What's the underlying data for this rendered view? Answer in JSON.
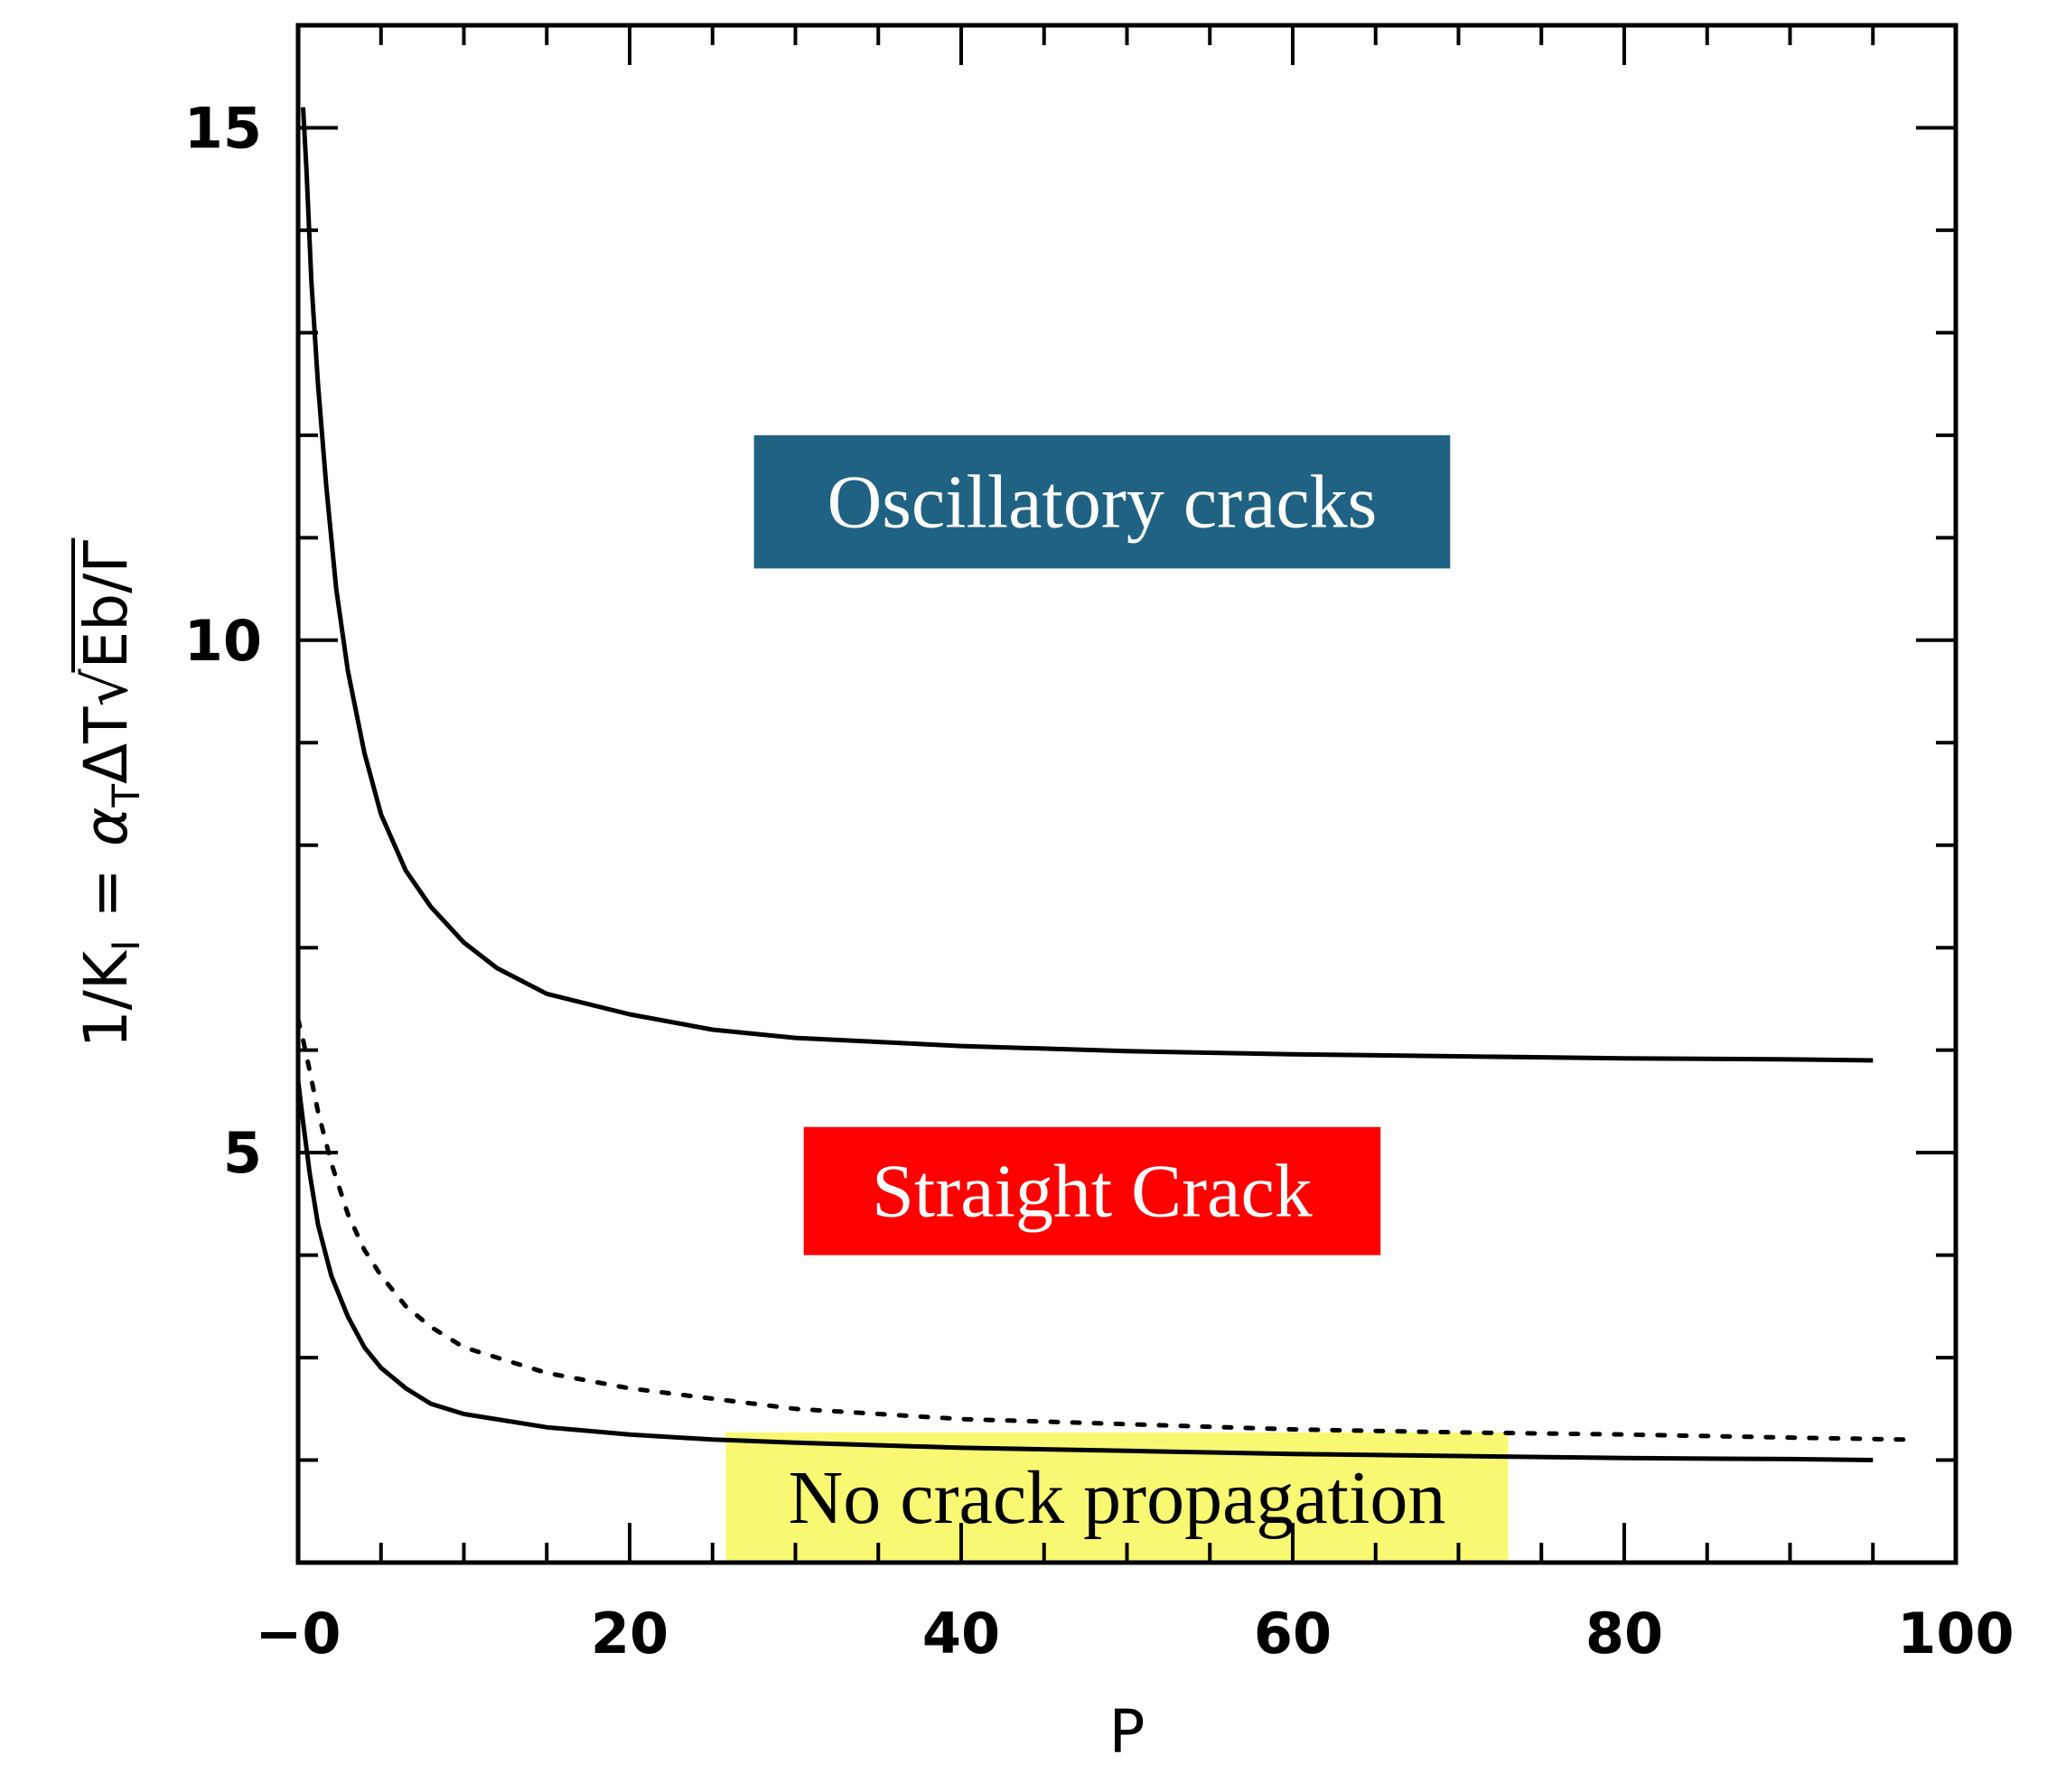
{
  "chart_data": {
    "type": "line",
    "title": "",
    "xlabel": "P",
    "ylabel": "1/K_I = α_T ΔT √(Eb/Γ)",
    "ylabel_parts": {
      "lhs_main": "1/K",
      "lhs_sub": "I",
      "equals": "=",
      "alpha": "α",
      "alpha_sub": "T",
      "delta_t": "ΔT",
      "radicand": "Eb/Γ"
    },
    "xlim": [
      0,
      100
    ],
    "ylim": [
      1,
      16
    ],
    "x_ticks": [
      {
        "value": 0,
        "label": "−0"
      },
      {
        "value": 20,
        "label": "20"
      },
      {
        "value": 40,
        "label": "40"
      },
      {
        "value": 60,
        "label": "60"
      },
      {
        "value": 80,
        "label": "80"
      },
      {
        "value": 100,
        "label": "100"
      }
    ],
    "y_ticks": [
      {
        "value": 5,
        "label": "5"
      },
      {
        "value": 10,
        "label": "10"
      },
      {
        "value": 15,
        "label": "15"
      }
    ],
    "x_minor_step": 5,
    "y_minor_step": 1,
    "grid": false,
    "series": [
      {
        "style": "solid",
        "color": "#000000",
        "points": [
          [
            0.3,
            15.2
          ],
          [
            0.5,
            14.6
          ],
          [
            0.8,
            13.5
          ],
          [
            1.2,
            12.5
          ],
          [
            1.7,
            11.5
          ],
          [
            2.3,
            10.5
          ],
          [
            3,
            9.7
          ],
          [
            4,
            8.9
          ],
          [
            5,
            8.3
          ],
          [
            6.5,
            7.75
          ],
          [
            8,
            7.4
          ],
          [
            10,
            7.05
          ],
          [
            12,
            6.8
          ],
          [
            15,
            6.55
          ],
          [
            20,
            6.35
          ],
          [
            25,
            6.2
          ],
          [
            30,
            6.12
          ],
          [
            40,
            6.04
          ],
          [
            50,
            5.99
          ],
          [
            60,
            5.96
          ],
          [
            70,
            5.94
          ],
          [
            80,
            5.92
          ],
          [
            90,
            5.91
          ],
          [
            95,
            5.9
          ]
        ]
      },
      {
        "style": "solid",
        "color": "#000000",
        "points": [
          [
            0,
            5.7
          ],
          [
            0.3,
            5.3
          ],
          [
            0.7,
            4.8
          ],
          [
            1.2,
            4.3
          ],
          [
            2,
            3.8
          ],
          [
            3,
            3.4
          ],
          [
            4,
            3.1
          ],
          [
            5,
            2.9
          ],
          [
            6.5,
            2.7
          ],
          [
            8,
            2.55
          ],
          [
            10,
            2.45
          ],
          [
            15,
            2.32
          ],
          [
            20,
            2.25
          ],
          [
            25,
            2.2
          ],
          [
            30,
            2.17
          ],
          [
            40,
            2.12
          ],
          [
            50,
            2.09
          ],
          [
            60,
            2.06
          ],
          [
            70,
            2.04
          ],
          [
            80,
            2.02
          ],
          [
            90,
            2.01
          ],
          [
            95,
            2.0
          ]
        ]
      },
      {
        "style": "dotted",
        "color": "#000000",
        "points": [
          [
            0,
            6.3
          ],
          [
            0.3,
            6.1
          ],
          [
            0.7,
            5.8
          ],
          [
            1.2,
            5.4
          ],
          [
            2,
            4.9
          ],
          [
            3,
            4.4
          ],
          [
            4,
            4.05
          ],
          [
            5,
            3.8
          ],
          [
            6.5,
            3.5
          ],
          [
            8,
            3.3
          ],
          [
            10,
            3.1
          ],
          [
            15,
            2.85
          ],
          [
            20,
            2.7
          ],
          [
            25,
            2.6
          ],
          [
            30,
            2.5
          ],
          [
            40,
            2.4
          ],
          [
            50,
            2.35
          ],
          [
            60,
            2.3
          ],
          [
            70,
            2.27
          ],
          [
            80,
            2.25
          ],
          [
            90,
            2.22
          ],
          [
            97,
            2.2
          ]
        ]
      }
    ],
    "annotations": [
      {
        "text": "Oscillatory cracks",
        "bg": "#1f6283",
        "color": "#ffffff",
        "x_range": [
          27.5,
          69.5
        ],
        "y_range": [
          10.7,
          12.0
        ]
      },
      {
        "text": "Straight Crack",
        "bg": "#fe0000",
        "color": "#ffffff",
        "x_range": [
          30.5,
          65.3
        ],
        "y_range": [
          4.0,
          5.25
        ]
      },
      {
        "text": "No crack propagation",
        "bg": "#f8f873",
        "color": "#000000",
        "x_range": [
          25.8,
          73.0
        ],
        "y_range": [
          1.0,
          2.27
        ]
      }
    ]
  }
}
